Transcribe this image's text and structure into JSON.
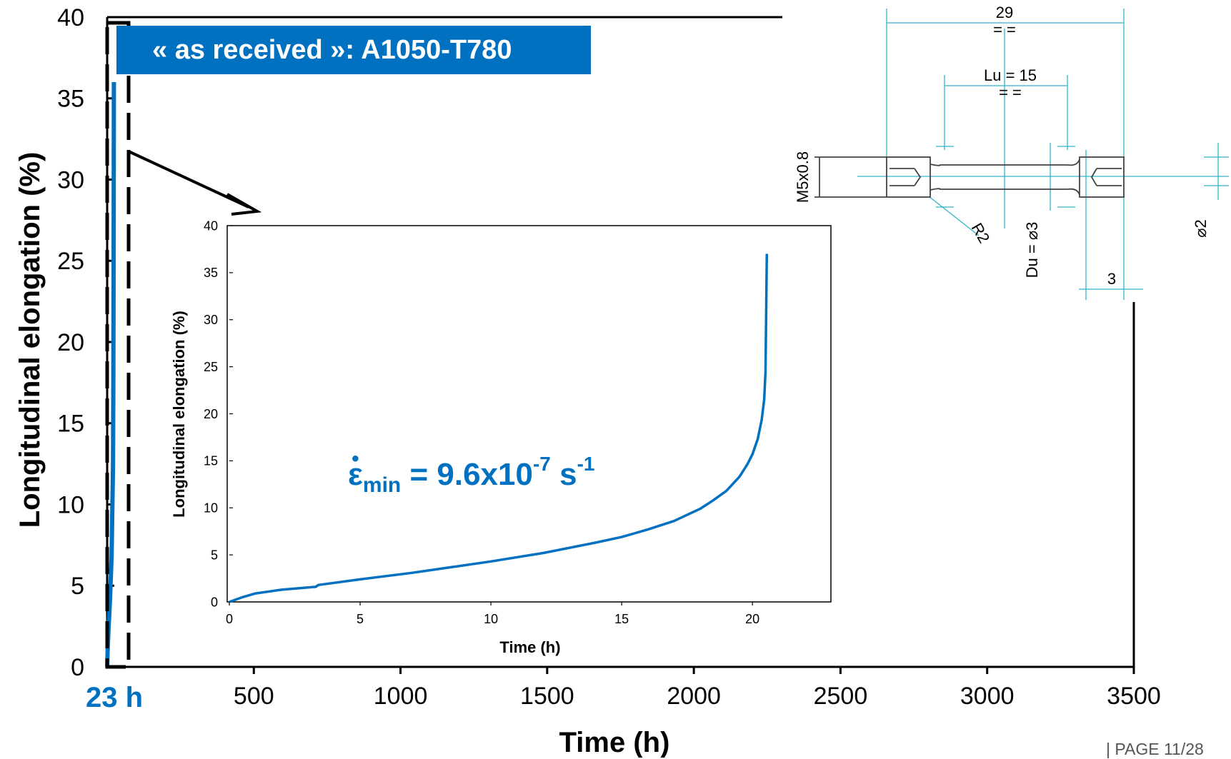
{
  "chart_data": [
    {
      "type": "line",
      "title": "",
      "xlabel": "Time (h)",
      "ylabel": "Longitudinal elongation (%)",
      "xlim": [
        0,
        3500
      ],
      "ylim": [
        0,
        40
      ],
      "xticks": [
        "500",
        "1000",
        "1500",
        "2000",
        "2500",
        "3000",
        "3500"
      ],
      "yticks": [
        "0",
        "5",
        "10",
        "15",
        "20",
        "25",
        "30",
        "35",
        "40"
      ],
      "highlight_x_label": "23 h",
      "series_color": "#0070C0",
      "x": [
        0,
        2,
        5,
        10,
        15,
        20,
        21,
        22,
        23
      ],
      "y": [
        0,
        1.2,
        2.5,
        4.3,
        6.8,
        12.5,
        17.0,
        24.0,
        36.0
      ]
    },
    {
      "type": "line",
      "title": "",
      "xlabel": "Time (h)",
      "ylabel": "Longitudinal elongation (%)",
      "xlim": [
        0,
        23
      ],
      "ylim": [
        0,
        40
      ],
      "xticks": [
        "0",
        "5",
        "10",
        "15",
        "20"
      ],
      "yticks": [
        "0",
        "5",
        "10",
        "15",
        "20",
        "25",
        "30",
        "35",
        "40"
      ],
      "series_color": "#0070C0",
      "x": [
        0,
        0.5,
        1,
        2,
        3.3,
        3.4,
        5,
        7,
        10,
        12,
        14,
        15,
        16,
        17,
        18,
        18.5,
        19,
        19.5,
        19.8,
        20,
        20.2,
        20.35,
        20.45,
        20.5,
        20.55
      ],
      "y": [
        0,
        0.5,
        0.9,
        1.3,
        1.6,
        1.8,
        2.4,
        3.1,
        4.3,
        5.2,
        6.3,
        6.9,
        7.7,
        8.6,
        9.9,
        10.8,
        11.8,
        13.3,
        14.6,
        15.7,
        17.3,
        19.3,
        21.5,
        24.5,
        37.0
      ]
    }
  ],
  "annotations": {
    "material_label": "« as received »: A1050-T780",
    "rate_symbol": "ε",
    "rate_dot": "•",
    "rate_sub": "min",
    "rate_value": " = 9.6x10",
    "rate_exp1": "-7",
    "rate_unit": " s",
    "rate_exp2": "-1"
  },
  "specimen_drawing": {
    "dim_total": "29",
    "dim_total_marks": "= =",
    "dim_lu": "Lu = 15",
    "dim_lu_marks": "= =",
    "thread": "M5x0.8",
    "radius": "R2",
    "diameter_du": "Du = ⌀3",
    "dim_head": "3",
    "diameter_pin": "⌀2"
  },
  "footer": {
    "page": "| PAGE 11/28"
  }
}
